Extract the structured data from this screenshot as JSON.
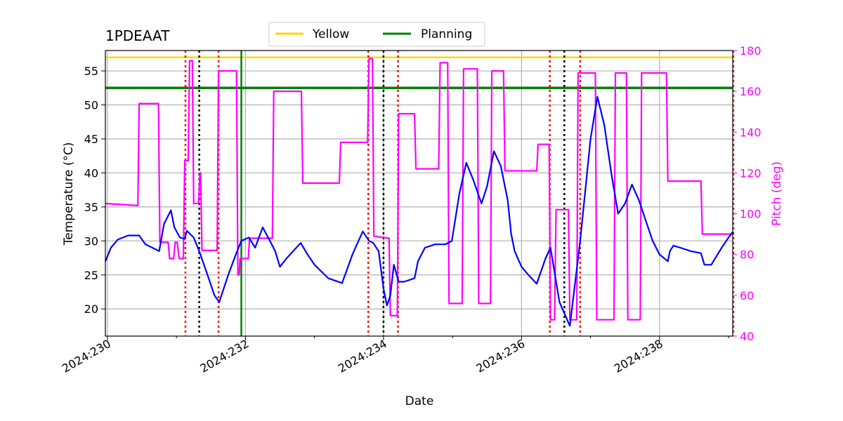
{
  "chart_data": {
    "type": "line",
    "title": "1PDEAAT",
    "xlabel": "Date",
    "ylabel": "Temperature ($^\\circ$C)",
    "ylabel_display": "Temperature (°C)",
    "y2label": "Pitch (deg)",
    "xlim": [
      229.97,
      239.06
    ],
    "ylim": [
      16,
      58
    ],
    "y2lim": [
      40,
      180
    ],
    "x_ticks": [
      230,
      232,
      234,
      236,
      238
    ],
    "x_tick_labels": [
      "2024:230",
      "2024:232",
      "2024:234",
      "2024:236",
      "2024:238"
    ],
    "y_ticks": [
      20,
      25,
      30,
      35,
      40,
      45,
      50,
      55
    ],
    "y2_ticks": [
      40,
      60,
      80,
      100,
      120,
      140,
      160,
      180
    ],
    "grid": true,
    "legend_position": "top-center",
    "legend": [
      {
        "name": "Yellow",
        "color": "#ffd700"
      },
      {
        "name": "Planning",
        "color": "#008000"
      }
    ],
    "limits": {
      "yellow": 57,
      "planning": 52.5
    },
    "planning_start_line": 231.94,
    "red_dotted_lines": [
      231.13,
      231.61,
      233.78,
      234.21,
      236.41,
      236.85,
      239.07
    ],
    "black_dotted_lines": [
      231.33,
      234.0,
      236.62
    ],
    "colors": {
      "temperature": "#0000ff",
      "pitch": "#ff00ff",
      "yellow": "#ffd700",
      "planning": "#008000",
      "grid": "#b0b0b0",
      "red_line": "#ff0000",
      "black_line": "#000000"
    },
    "series": [
      {
        "name": "Temperature",
        "axis": "left",
        "x": [
          229.97,
          230.05,
          230.15,
          230.3,
          230.46,
          230.55,
          230.75,
          230.82,
          230.92,
          230.97,
          231.05,
          231.12,
          231.15,
          231.25,
          231.33,
          231.45,
          231.55,
          231.62,
          231.75,
          231.86,
          231.94,
          232.05,
          232.14,
          232.25,
          232.38,
          232.43,
          232.5,
          232.6,
          232.8,
          232.9,
          233.0,
          233.2,
          233.4,
          233.55,
          233.7,
          233.79,
          233.85,
          233.93,
          234.0,
          234.05,
          234.1,
          234.15,
          234.22,
          234.3,
          234.45,
          234.5,
          234.6,
          234.75,
          234.9,
          234.99,
          235.1,
          235.2,
          235.3,
          235.42,
          235.5,
          235.6,
          235.7,
          235.8,
          235.85,
          235.9,
          236.0,
          236.1,
          236.22,
          236.35,
          236.42,
          236.55,
          236.7,
          236.85,
          237.0,
          237.1,
          237.2,
          237.3,
          237.4,
          237.5,
          237.6,
          237.7,
          237.8,
          237.9,
          238.0,
          238.12,
          238.15,
          238.2,
          238.3,
          238.45,
          238.6,
          238.65,
          238.75,
          238.9,
          239.0,
          239.06
        ],
        "y": [
          27,
          29,
          30.2,
          30.8,
          30.8,
          29.5,
          28.5,
          32.5,
          34.5,
          32,
          30.5,
          30.3,
          31.5,
          30.5,
          28.5,
          25,
          22,
          21,
          25,
          28,
          30,
          30.5,
          29,
          32,
          29.5,
          28.5,
          26.2,
          27.5,
          29.7,
          28,
          26.5,
          24.5,
          23.8,
          28,
          31.4,
          30,
          29.7,
          28.5,
          23,
          20.5,
          22,
          26.5,
          24,
          24,
          24.5,
          27,
          29,
          29.5,
          29.5,
          30,
          37,
          41.5,
          39,
          35.5,
          38,
          43.2,
          41,
          36,
          31,
          28.5,
          26.2,
          25,
          23.7,
          27.5,
          29,
          21,
          17.5,
          30,
          45,
          51.2,
          47,
          40,
          34,
          35.5,
          38.3,
          36,
          33,
          30,
          28,
          27,
          28.5,
          29.3,
          29,
          28.5,
          28.2,
          26.5,
          26.5,
          29,
          30.5,
          31.3
        ]
      },
      {
        "name": "Pitch",
        "axis": "right",
        "x": [
          229.97,
          230.44,
          230.46,
          230.74,
          230.76,
          230.88,
          230.9,
          230.96,
          230.98,
          231.01,
          231.04,
          231.1,
          231.12,
          231.17,
          231.19,
          231.23,
          231.25,
          231.32,
          231.34,
          231.35,
          231.37,
          231.59,
          231.61,
          231.87,
          231.89,
          231.91,
          231.92,
          232.04,
          232.06,
          232.39,
          232.41,
          232.81,
          232.83,
          233.36,
          233.38,
          233.77,
          233.79,
          233.84,
          233.86,
          234.08,
          234.1,
          234.2,
          234.22,
          234.45,
          234.47,
          234.8,
          234.82,
          234.93,
          234.95,
          235.14,
          235.16,
          235.36,
          235.38,
          235.55,
          235.57,
          235.74,
          235.76,
          236.22,
          236.24,
          236.4,
          236.42,
          236.48,
          236.5,
          236.68,
          236.7,
          236.8,
          236.82,
          237.07,
          237.09,
          237.34,
          237.36,
          237.52,
          237.54,
          237.72,
          237.74,
          238.1,
          238.12,
          238.6,
          238.62,
          239.06
        ],
        "y": [
          105,
          104,
          154,
          154,
          86,
          86,
          78,
          78,
          86,
          86,
          78,
          78,
          126,
          126,
          175,
          175,
          105,
          105,
          120,
          120,
          82,
          82,
          170,
          170,
          70,
          70,
          78,
          78,
          88,
          88,
          160,
          160,
          115,
          115,
          135,
          135,
          176,
          176,
          89,
          88,
          50,
          50,
          149,
          149,
          122,
          122,
          174,
          174,
          56,
          56,
          171,
          171,
          56,
          56,
          170,
          170,
          121,
          121,
          134,
          134,
          48,
          48,
          102,
          102,
          48,
          48,
          169,
          169,
          48,
          48,
          169,
          169,
          48,
          48,
          169,
          169,
          116,
          116,
          90,
          90
        ]
      }
    ]
  }
}
